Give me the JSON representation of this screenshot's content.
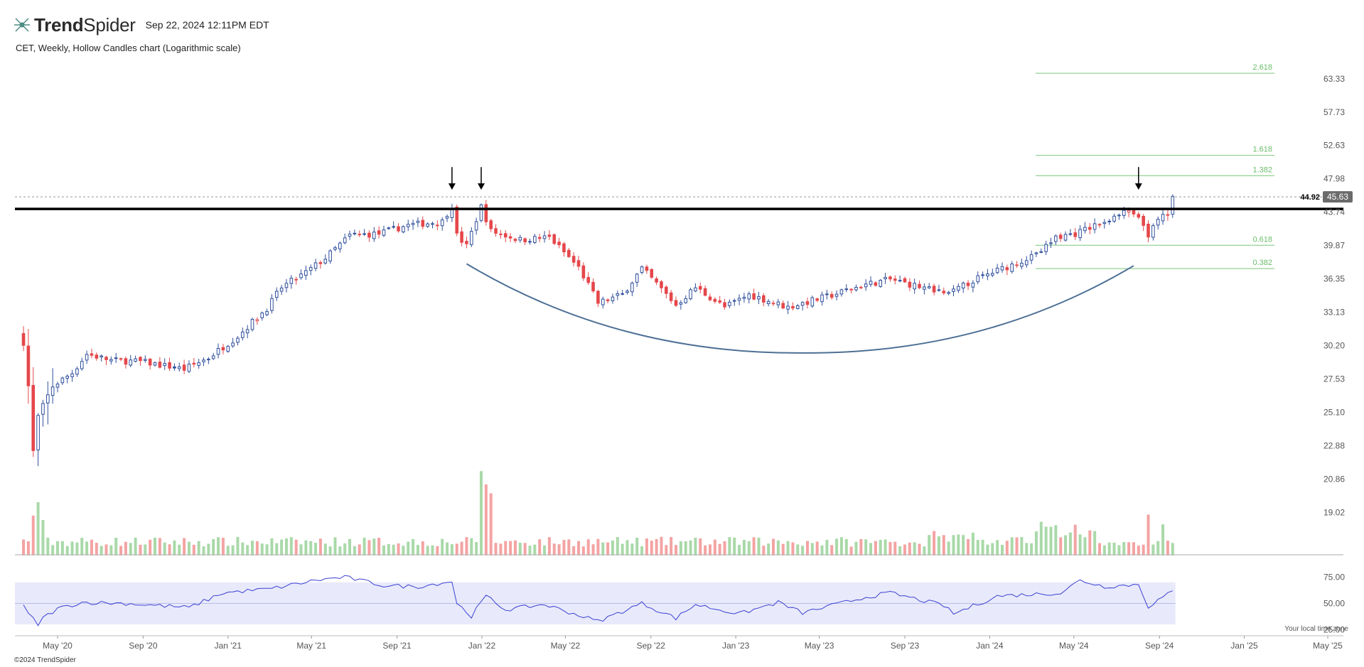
{
  "header": {
    "brand_bold": "Trend",
    "brand_rest": "Spider",
    "timestamp": "Sep 22, 2024 12:11PM EDT",
    "logo_icon": "trendspider-logo-icon"
  },
  "subtitle": "CET, Weekly, Hollow Candles chart (Logarithmic scale)",
  "footer": {
    "copyright": "©2024 TrendSpider",
    "timezone_note": "Your local time zone"
  },
  "colors": {
    "up": "#2f4f9c",
    "down": "#e5474b",
    "vol_up": "#a9d9a9",
    "vol_down": "#f4a3a3",
    "fib": "#7ac77a",
    "curve": "#4c6f95",
    "rsi_line": "#3b3fd1",
    "rsi_band": "#e8eafb"
  },
  "chart_data": {
    "type": "candlestick",
    "symbol": "CET",
    "timeframe": "Weekly",
    "scale": "log",
    "ylim": [
      17.8,
      66.5
    ],
    "price_ticks": [
      "63.33",
      "57.73",
      "52.63",
      "47.98",
      "43.74",
      "39.87",
      "36.35",
      "33.13",
      "30.20",
      "27.53",
      "25.10",
      "22.88",
      "20.86",
      "19.02"
    ],
    "x_ticks": [
      {
        "label": "May '20",
        "date": "2020-05-01"
      },
      {
        "label": "Sep '20",
        "date": "2020-09-01"
      },
      {
        "label": "Jan '21",
        "date": "2021-01-01"
      },
      {
        "label": "May '21",
        "date": "2021-05-01"
      },
      {
        "label": "Sep '21",
        "date": "2021-09-01"
      },
      {
        "label": "Jan '22",
        "date": "2022-01-01"
      },
      {
        "label": "May '22",
        "date": "2022-05-01"
      },
      {
        "label": "Sep '22",
        "date": "2022-09-01"
      },
      {
        "label": "Jan '23",
        "date": "2023-01-01"
      },
      {
        "label": "May '23",
        "date": "2023-05-01"
      },
      {
        "label": "Sep '23",
        "date": "2023-09-01"
      },
      {
        "label": "Jan '24",
        "date": "2024-01-01"
      },
      {
        "label": "May '24",
        "date": "2024-05-01"
      },
      {
        "label": "Sep '24",
        "date": "2024-09-01"
      },
      {
        "label": "Jan '25",
        "date": "2025-01-01"
      },
      {
        "label": "May '25",
        "date": "2025-05-01"
      }
    ],
    "resistance_level": 44.92,
    "last_price": 45.63,
    "resistance_label": "44.92",
    "last_price_label": "45.63",
    "fib_levels": [
      {
        "label": "2.618",
        "price": 64.3
      },
      {
        "label": "1.618",
        "price": 51.2
      },
      {
        "label": "1.382",
        "price": 48.4
      },
      {
        "label": "0.618",
        "price": 39.9
      },
      {
        "label": "0.382",
        "price": 37.4
      }
    ],
    "rounding_bottom": {
      "start_date": "2021-12-10",
      "low_date": "2023-04-07",
      "end_date": "2024-07-26",
      "start_price": 37.9,
      "low_price": 29.6,
      "end_price": 37.7
    },
    "touch_arrows": [
      "2021-11-19",
      "2021-12-31",
      "2024-08-02"
    ],
    "price_anchors": [
      [
        "2020-03-13",
        30.5
      ],
      [
        "2020-03-20",
        27.0
      ],
      [
        "2020-03-27",
        22.5
      ],
      [
        "2020-04-03",
        24.8
      ],
      [
        "2020-04-24",
        27.0
      ],
      [
        "2020-05-22",
        28.0
      ],
      [
        "2020-06-12",
        29.5
      ],
      [
        "2020-07-17",
        29.0
      ],
      [
        "2020-08-28",
        28.9
      ],
      [
        "2020-10-30",
        28.3
      ],
      [
        "2020-12-04",
        29.2
      ],
      [
        "2021-01-15",
        31.0
      ],
      [
        "2021-02-26",
        33.5
      ],
      [
        "2021-03-19",
        35.5
      ],
      [
        "2021-04-23",
        37.0
      ],
      [
        "2021-05-21",
        38.5
      ],
      [
        "2021-06-25",
        41.0
      ],
      [
        "2021-08-06",
        41.2
      ],
      [
        "2021-09-17",
        42.2
      ],
      [
        "2021-11-05",
        42.6
      ],
      [
        "2021-11-19",
        44.6
      ],
      [
        "2021-11-26",
        41.0
      ],
      [
        "2021-12-10",
        39.8
      ],
      [
        "2021-12-31",
        44.4
      ],
      [
        "2022-01-14",
        41.5
      ],
      [
        "2022-02-25",
        40.5
      ],
      [
        "2022-04-08",
        40.8
      ],
      [
        "2022-05-20",
        37.5
      ],
      [
        "2022-06-17",
        34.0
      ],
      [
        "2022-07-22",
        34.8
      ],
      [
        "2022-08-19",
        37.4
      ],
      [
        "2022-10-07",
        33.8
      ],
      [
        "2022-11-04",
        35.5
      ],
      [
        "2022-12-16",
        33.6
      ],
      [
        "2023-01-20",
        34.8
      ],
      [
        "2023-03-17",
        33.6
      ],
      [
        "2023-05-12",
        34.6
      ],
      [
        "2023-07-07",
        35.8
      ],
      [
        "2023-08-11",
        36.3
      ],
      [
        "2023-10-13",
        35.2
      ],
      [
        "2023-11-03",
        34.8
      ],
      [
        "2023-12-08",
        36.2
      ],
      [
        "2024-01-19",
        37.4
      ],
      [
        "2024-03-08",
        38.8
      ],
      [
        "2024-04-05",
        40.8
      ],
      [
        "2024-05-03",
        41.2
      ],
      [
        "2024-06-14",
        42.6
      ],
      [
        "2024-07-19",
        43.9
      ],
      [
        "2024-08-09",
        42.2
      ],
      [
        "2024-08-16",
        41.0
      ],
      [
        "2024-08-30",
        42.7
      ],
      [
        "2024-09-13",
        43.5
      ],
      [
        "2024-09-20",
        45.63
      ]
    ],
    "rsi_ticks": [
      "75.00",
      "50.00",
      "25.00"
    ],
    "rsi_band": [
      30,
      70
    ],
    "rsi_anchors": [
      [
        "2020-03-13",
        47
      ],
      [
        "2020-03-20",
        40
      ],
      [
        "2020-04-03",
        30
      ],
      [
        "2020-04-10",
        36
      ],
      [
        "2020-05-01",
        45
      ],
      [
        "2020-06-05",
        51
      ],
      [
        "2020-08-07",
        50
      ],
      [
        "2020-11-06",
        46
      ],
      [
        "2020-12-25",
        60
      ],
      [
        "2021-03-05",
        64
      ],
      [
        "2021-05-07",
        72
      ],
      [
        "2021-06-18",
        75
      ],
      [
        "2021-08-13",
        67
      ],
      [
        "2021-10-01",
        66
      ],
      [
        "2021-11-19",
        71
      ],
      [
        "2021-11-26",
        50
      ],
      [
        "2021-12-17",
        38
      ],
      [
        "2022-01-07",
        57
      ],
      [
        "2022-02-04",
        44
      ],
      [
        "2022-04-01",
        49
      ],
      [
        "2022-06-17",
        33
      ],
      [
        "2022-08-19",
        50
      ],
      [
        "2022-10-07",
        36
      ],
      [
        "2022-11-04",
        49
      ],
      [
        "2023-01-06",
        40
      ],
      [
        "2023-03-03",
        51
      ],
      [
        "2023-04-07",
        41
      ],
      [
        "2023-07-07",
        56
      ],
      [
        "2023-08-11",
        60
      ],
      [
        "2023-10-27",
        48
      ],
      [
        "2023-11-10",
        40
      ],
      [
        "2024-01-12",
        57
      ],
      [
        "2024-04-12",
        60
      ],
      [
        "2024-05-10",
        72
      ],
      [
        "2024-06-14",
        66
      ],
      [
        "2024-08-02",
        68
      ],
      [
        "2024-08-16",
        47
      ],
      [
        "2024-09-06",
        56
      ],
      [
        "2024-09-20",
        61
      ]
    ],
    "volume_spikes": [
      [
        "2020-03-27",
        4.5
      ],
      [
        "2020-04-03",
        6.0
      ],
      [
        "2020-04-10",
        4.0
      ],
      [
        "2021-12-31",
        9.5
      ],
      [
        "2022-01-07",
        8.0
      ],
      [
        "2022-01-14",
        7.0
      ],
      [
        "2024-03-15",
        3.8
      ],
      [
        "2024-08-16",
        4.6
      ],
      [
        "2024-09-06",
        3.5
      ]
    ]
  }
}
